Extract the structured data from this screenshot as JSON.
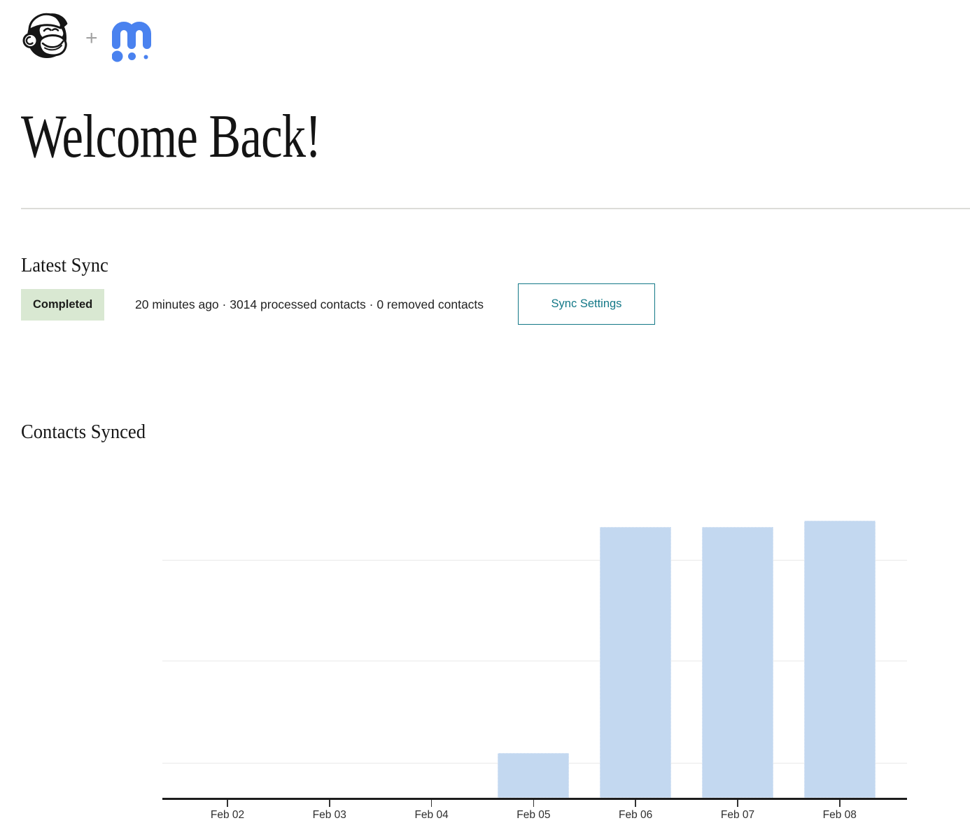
{
  "header": {
    "left_logo": "mailchimp-freddie",
    "plus": "+",
    "right_logo": "m-dots-app"
  },
  "page_title": "Welcome Back!",
  "latest_sync": {
    "heading": "Latest Sync",
    "status_label": "Completed",
    "summary": "20 minutes ago · 3014 processed contacts · 0 removed contacts",
    "settings_button": "Sync Settings"
  },
  "contacts_synced": {
    "heading": "Contacts Synced"
  },
  "colors": {
    "accent_teal": "#137887",
    "badge_green_bg": "#d9e8d2",
    "bar_blue": "#c3d8f0",
    "logo_blue": "#4a82ef",
    "gridline": "#e9e9e9",
    "axis": "#1d1d1d"
  },
  "chart_data": {
    "type": "bar",
    "title": "Contacts Synced",
    "categories": [
      "Feb 02",
      "Feb 03",
      "Feb 04",
      "Feb 05",
      "Feb 06",
      "Feb 07",
      "Feb 08"
    ],
    "values": [
      0,
      0,
      0,
      250,
      1500,
      1500,
      1535
    ],
    "xlabel": "",
    "ylabel": "",
    "ylim": [
      0,
      1890
    ],
    "grid": "horizontal-unlabeled",
    "legend": "none",
    "note": "y-axis has no tick labels; values estimated from bar heights"
  }
}
